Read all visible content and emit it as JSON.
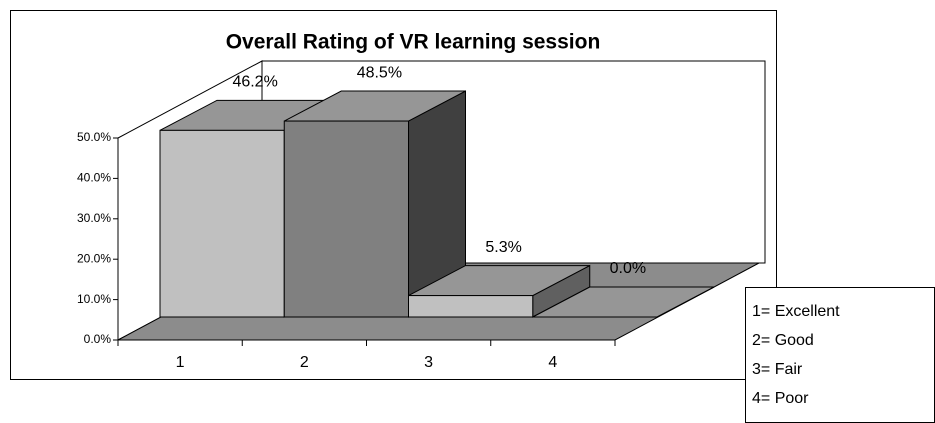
{
  "chart_data": {
    "type": "bar3d",
    "title": "Overall Rating of VR learning session",
    "categories": [
      "1",
      "2",
      "3",
      "4"
    ],
    "values": [
      46.2,
      48.5,
      5.3,
      0.0
    ],
    "value_labels": [
      "46.2%",
      "48.5%",
      "5.3%",
      "0.0%"
    ],
    "colors": [
      "#c0c0c0",
      "#808080",
      "#c0c0c0",
      "#808080"
    ],
    "ylim": [
      0,
      50
    ],
    "yticks": [
      {
        "value": 0,
        "label": "0.0%"
      },
      {
        "value": 10,
        "label": "10.0%"
      },
      {
        "value": 20,
        "label": "20.0%"
      },
      {
        "value": 30,
        "label": "30.0%"
      },
      {
        "value": 40,
        "label": "40.0%"
      },
      {
        "value": 50,
        "label": "50.0%"
      }
    ],
    "legend_entries": [
      "1= Excellent",
      "2= Good",
      "3= Fair",
      "4= Poor"
    ]
  }
}
